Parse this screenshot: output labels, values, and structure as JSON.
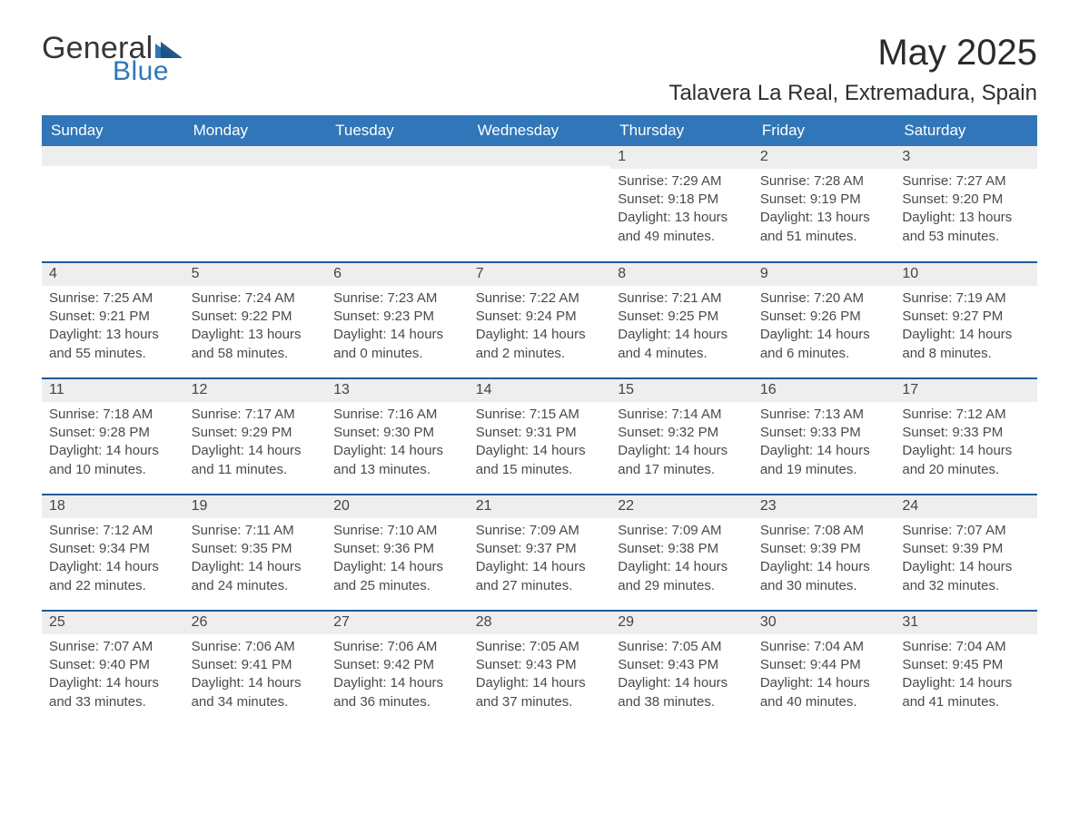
{
  "logo": {
    "word1": "General",
    "word2": "Blue"
  },
  "title": "May 2025",
  "location": "Talavera La Real, Extremadura, Spain",
  "colors": {
    "header_blue": "#3176b8",
    "row_border_blue": "#1f5a99",
    "daynum_bg": "#eeeeee",
    "text": "#3a3a3a",
    "background": "#ffffff"
  },
  "weekdays": [
    "Sunday",
    "Monday",
    "Tuesday",
    "Wednesday",
    "Thursday",
    "Friday",
    "Saturday"
  ],
  "weeks": [
    [
      null,
      null,
      null,
      null,
      {
        "d": "1",
        "sr": "7:29 AM",
        "ss": "9:18 PM",
        "dl": "13 hours and 49 minutes."
      },
      {
        "d": "2",
        "sr": "7:28 AM",
        "ss": "9:19 PM",
        "dl": "13 hours and 51 minutes."
      },
      {
        "d": "3",
        "sr": "7:27 AM",
        "ss": "9:20 PM",
        "dl": "13 hours and 53 minutes."
      }
    ],
    [
      {
        "d": "4",
        "sr": "7:25 AM",
        "ss": "9:21 PM",
        "dl": "13 hours and 55 minutes."
      },
      {
        "d": "5",
        "sr": "7:24 AM",
        "ss": "9:22 PM",
        "dl": "13 hours and 58 minutes."
      },
      {
        "d": "6",
        "sr": "7:23 AM",
        "ss": "9:23 PM",
        "dl": "14 hours and 0 minutes."
      },
      {
        "d": "7",
        "sr": "7:22 AM",
        "ss": "9:24 PM",
        "dl": "14 hours and 2 minutes."
      },
      {
        "d": "8",
        "sr": "7:21 AM",
        "ss": "9:25 PM",
        "dl": "14 hours and 4 minutes."
      },
      {
        "d": "9",
        "sr": "7:20 AM",
        "ss": "9:26 PM",
        "dl": "14 hours and 6 minutes."
      },
      {
        "d": "10",
        "sr": "7:19 AM",
        "ss": "9:27 PM",
        "dl": "14 hours and 8 minutes."
      }
    ],
    [
      {
        "d": "11",
        "sr": "7:18 AM",
        "ss": "9:28 PM",
        "dl": "14 hours and 10 minutes."
      },
      {
        "d": "12",
        "sr": "7:17 AM",
        "ss": "9:29 PM",
        "dl": "14 hours and 11 minutes."
      },
      {
        "d": "13",
        "sr": "7:16 AM",
        "ss": "9:30 PM",
        "dl": "14 hours and 13 minutes."
      },
      {
        "d": "14",
        "sr": "7:15 AM",
        "ss": "9:31 PM",
        "dl": "14 hours and 15 minutes."
      },
      {
        "d": "15",
        "sr": "7:14 AM",
        "ss": "9:32 PM",
        "dl": "14 hours and 17 minutes."
      },
      {
        "d": "16",
        "sr": "7:13 AM",
        "ss": "9:33 PM",
        "dl": "14 hours and 19 minutes."
      },
      {
        "d": "17",
        "sr": "7:12 AM",
        "ss": "9:33 PM",
        "dl": "14 hours and 20 minutes."
      }
    ],
    [
      {
        "d": "18",
        "sr": "7:12 AM",
        "ss": "9:34 PM",
        "dl": "14 hours and 22 minutes."
      },
      {
        "d": "19",
        "sr": "7:11 AM",
        "ss": "9:35 PM",
        "dl": "14 hours and 24 minutes."
      },
      {
        "d": "20",
        "sr": "7:10 AM",
        "ss": "9:36 PM",
        "dl": "14 hours and 25 minutes."
      },
      {
        "d": "21",
        "sr": "7:09 AM",
        "ss": "9:37 PM",
        "dl": "14 hours and 27 minutes."
      },
      {
        "d": "22",
        "sr": "7:09 AM",
        "ss": "9:38 PM",
        "dl": "14 hours and 29 minutes."
      },
      {
        "d": "23",
        "sr": "7:08 AM",
        "ss": "9:39 PM",
        "dl": "14 hours and 30 minutes."
      },
      {
        "d": "24",
        "sr": "7:07 AM",
        "ss": "9:39 PM",
        "dl": "14 hours and 32 minutes."
      }
    ],
    [
      {
        "d": "25",
        "sr": "7:07 AM",
        "ss": "9:40 PM",
        "dl": "14 hours and 33 minutes."
      },
      {
        "d": "26",
        "sr": "7:06 AM",
        "ss": "9:41 PM",
        "dl": "14 hours and 34 minutes."
      },
      {
        "d": "27",
        "sr": "7:06 AM",
        "ss": "9:42 PM",
        "dl": "14 hours and 36 minutes."
      },
      {
        "d": "28",
        "sr": "7:05 AM",
        "ss": "9:43 PM",
        "dl": "14 hours and 37 minutes."
      },
      {
        "d": "29",
        "sr": "7:05 AM",
        "ss": "9:43 PM",
        "dl": "14 hours and 38 minutes."
      },
      {
        "d": "30",
        "sr": "7:04 AM",
        "ss": "9:44 PM",
        "dl": "14 hours and 40 minutes."
      },
      {
        "d": "31",
        "sr": "7:04 AM",
        "ss": "9:45 PM",
        "dl": "14 hours and 41 minutes."
      }
    ]
  ],
  "labels": {
    "sunrise": "Sunrise: ",
    "sunset": "Sunset: ",
    "daylight": "Daylight: "
  }
}
